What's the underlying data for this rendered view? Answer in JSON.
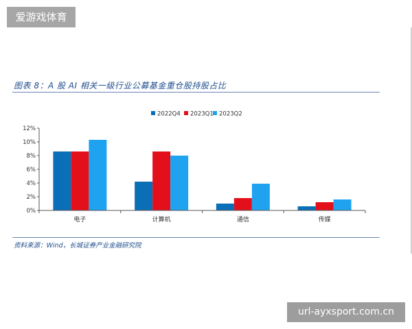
{
  "watermark_top": "爱游戏体育",
  "figure_title": "图表 8：A 股 AI 相关一级行业公募基金重仓股持股占比",
  "source_note": "资料来源：Wind，长城证券产业金融研究院",
  "watermark_bottom": "url-ayxsport.com.cn",
  "chart_data": {
    "type": "bar",
    "categories": [
      "电子",
      "计算机",
      "通信",
      "传媒"
    ],
    "series": [
      {
        "name": "2022Q4",
        "color": "#0b6fb8",
        "values": [
          8.6,
          4.2,
          1.0,
          0.6
        ]
      },
      {
        "name": "2023Q1",
        "color": "#e3101b",
        "values": [
          8.6,
          8.6,
          1.8,
          1.2
        ]
      },
      {
        "name": "2023Q2",
        "color": "#1fa3f0",
        "values": [
          10.3,
          8.0,
          3.9,
          1.6
        ]
      }
    ],
    "yticks": [
      "0%",
      "2%",
      "4%",
      "6%",
      "8%",
      "10%",
      "12%"
    ],
    "ylim": [
      0,
      12
    ],
    "title": "",
    "xlabel": "",
    "ylabel": "",
    "grid": false,
    "legend": "top-center"
  }
}
